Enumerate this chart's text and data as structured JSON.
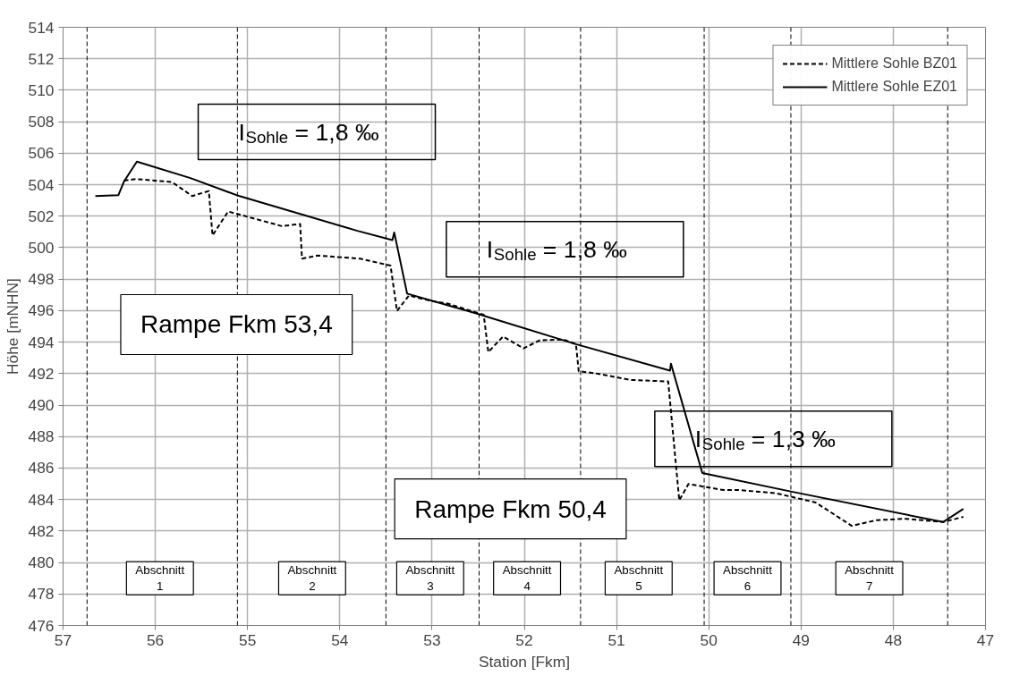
{
  "chart_data": {
    "type": "line",
    "xlabel": "Station [Fkm]",
    "ylabel": "Höhe [mNHN]",
    "xlim": [
      57,
      47
    ],
    "xticks": [
      57,
      56,
      55,
      54,
      53,
      52,
      51,
      50,
      49,
      48,
      47
    ],
    "ylim": [
      476,
      514
    ],
    "yticks": [
      476,
      478,
      480,
      482,
      484,
      486,
      488,
      490,
      492,
      494,
      496,
      498,
      500,
      502,
      504,
      506,
      508,
      510,
      512,
      514
    ],
    "grid": true,
    "legend": "top right",
    "marker": "none",
    "series": [
      {
        "name": "Mittlere Sohle BZ01",
        "color": "#000000",
        "line_style": "dashed",
        "x": [
          56.34,
          56.21,
          55.82,
          55.6,
          55.42,
          55.38,
          55.21,
          54.63,
          54.43,
          54.41,
          54.24,
          53.78,
          53.45,
          53.38,
          53.25,
          53.02,
          52.82,
          52.53,
          52.44,
          52.39,
          52.23,
          52.01,
          51.83,
          51.57,
          51.44,
          51.41,
          51.24,
          50.85,
          50.44,
          50.32,
          50.22,
          49.84,
          49.66,
          49.27,
          48.84,
          48.45,
          48.18,
          47.86,
          47.46,
          47.24
        ],
        "values": [
          504.26,
          504.36,
          504.17,
          503.28,
          503.6,
          500.78,
          502.3,
          501.37,
          501.5,
          499.3,
          499.5,
          499.3,
          498.86,
          495.98,
          496.96,
          496.63,
          496.43,
          495.9,
          495.74,
          493.37,
          494.36,
          493.6,
          494.12,
          494.16,
          493.87,
          492.15,
          492.03,
          491.6,
          491.5,
          483.95,
          484.99,
          484.6,
          484.6,
          484.4,
          483.81,
          482.33,
          482.69,
          482.78,
          482.57,
          482.9
        ]
      },
      {
        "name": "Mittlere Sohle EZ01",
        "color": "#000000",
        "line_style": "solid",
        "x": [
          56.65,
          56.4,
          56.34,
          56.2,
          55.62,
          55.12,
          53.81,
          53.43,
          53.41,
          53.27,
          52.53,
          51.44,
          50.42,
          50.41,
          50.07,
          49.1,
          47.46,
          47.24
        ],
        "values": [
          503.28,
          503.34,
          504.2,
          505.47,
          504.42,
          503.34,
          501.07,
          500.48,
          500.97,
          497.08,
          495.84,
          493.87,
          492.19,
          492.63,
          485.68,
          484.5,
          482.57,
          483.41
        ]
      }
    ],
    "ref_lines": [
      {
        "axis": "x",
        "value": 56.74,
        "line_style": "dashed",
        "color": "#000000"
      },
      {
        "axis": "x",
        "value": 55.11,
        "line_style": "dashed",
        "color": "#000000"
      },
      {
        "axis": "x",
        "value": 53.5,
        "line_style": "dashed",
        "color": "#000000"
      },
      {
        "axis": "x",
        "value": 52.49,
        "line_style": "dashed",
        "color": "#000000"
      },
      {
        "axis": "x",
        "value": 51.39,
        "line_style": "dashed",
        "color": "#000000"
      },
      {
        "axis": "x",
        "value": 50.05,
        "line_style": "dashed",
        "color": "#000000"
      },
      {
        "axis": "x",
        "value": 49.11,
        "line_style": "dashed",
        "color": "#000000"
      },
      {
        "axis": "x",
        "value": 47.41,
        "line_style": "dashed",
        "color": "#000000"
      }
    ],
    "annotations": [
      "I$_{Sohle}$ = 1,8 ‰",
      "I$_{Sohle}$ = 1,8 ‰",
      "I$_{Sohle}$ = 1,3 ‰",
      "Rampe Fkm 53,4",
      "Rampe Fkm 50,4",
      "Abschnitt\n1",
      "Abschnitt\n2",
      "Abschnitt\n3",
      "Abschnitt\n4",
      "Abschnitt\n5",
      "Abschnitt\n6",
      "Abschnitt\n7"
    ]
  }
}
